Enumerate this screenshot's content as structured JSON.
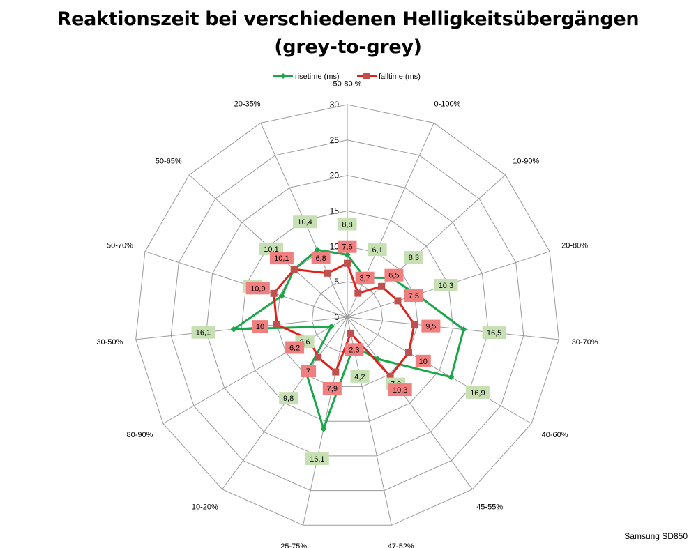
{
  "chart_data": {
    "type": "radar",
    "title": "Reaktionszeit bei verschiedenen Helligkeitsübergängen",
    "subtitle": "(grey-to-grey)",
    "categories": [
      "50-80 %",
      "0-100%",
      "10-90%",
      "20-80%",
      "30-70%",
      "40-60%",
      "45-55%",
      "47-52%",
      "25-75%",
      "10-20%",
      "80-90%",
      "30-50%",
      "50-70%",
      "50-65%",
      "20-35%"
    ],
    "rlim": [
      0,
      30
    ],
    "rticks": [
      0,
      5,
      10,
      15,
      20,
      25,
      30
    ],
    "series": [
      {
        "name": "risetime (ms)",
        "color": "#1aa64a",
        "label_bg": "#c6e0b4",
        "values": [
          8.8,
          6.1,
          8.3,
          10.3,
          16.5,
          16.9,
          7.3,
          4.2,
          16.1,
          9.8,
          2.6,
          16.1,
          9.7,
          10.1,
          10.4
        ],
        "labels": [
          "8,8",
          "6,1",
          "8,3",
          "10,3",
          "16,5",
          "16,9",
          "7,3",
          "4,2",
          "16,1",
          "9,8",
          "2,6",
          "16,1",
          "9,7",
          "10,1",
          "10,4"
        ]
      },
      {
        "name": "falltime (ms)",
        "color": "#e0201b",
        "marker_color": "#c0504d",
        "label_bg": "#f08080",
        "values": [
          7.6,
          3.7,
          6.5,
          7.5,
          9.5,
          10,
          10.3,
          2.3,
          7.9,
          7,
          6.2,
          10,
          10.9,
          10.1,
          6.8
        ],
        "labels": [
          "7,6",
          "3,7",
          "6,5",
          "7,5",
          "9,5",
          "10",
          "10,3",
          "2,3",
          "7,9",
          "7",
          "6,2",
          "10",
          "10,9",
          "10,1",
          "6,8"
        ]
      }
    ],
    "legend_position": "top"
  },
  "credit": "Samsung SD850"
}
